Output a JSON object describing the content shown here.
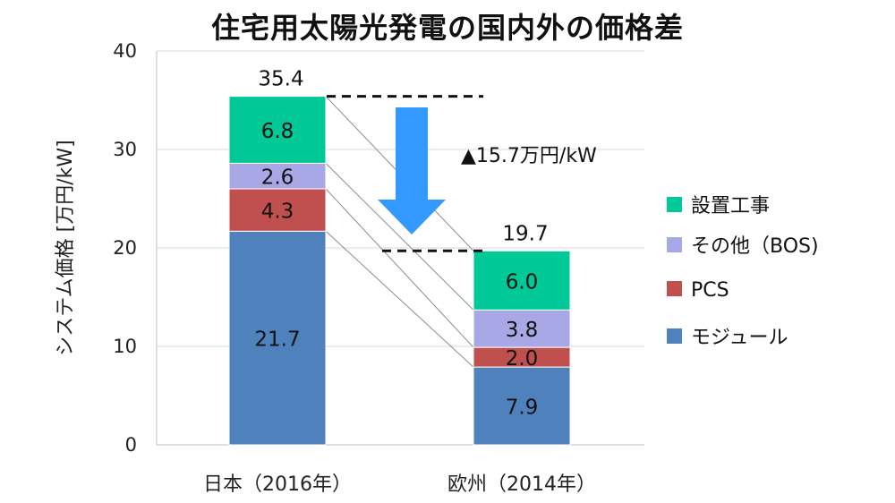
{
  "chart_data": {
    "type": "bar",
    "stacked": true,
    "title": "住宅用太陽光発電の国内外の価格差",
    "ylabel": "システム価格 [万円/kW]",
    "xlabel": "",
    "ylim": [
      0,
      40
    ],
    "yticks": [
      "0",
      "10",
      "20",
      "30",
      "40"
    ],
    "grid": true,
    "legend_position": "right",
    "categories": [
      "日本（2016年）",
      "欧州（2014年）"
    ],
    "totals": [
      35.4,
      19.7
    ],
    "total_labels": [
      "35.4",
      "19.7"
    ],
    "series": [
      {
        "name": "モジュール",
        "color": "#4f81bd",
        "values": [
          21.7,
          7.9
        ],
        "labels": [
          "21.7",
          "7.9"
        ]
      },
      {
        "name": "PCS",
        "color": "#c0504d",
        "values": [
          4.3,
          2.0
        ],
        "labels": [
          "4.3",
          "2.0"
        ]
      },
      {
        "name": "その他（BOS)",
        "color": "#a9a8e6",
        "values": [
          2.6,
          3.8
        ],
        "labels": [
          "2.6",
          "3.8"
        ]
      },
      {
        "name": "設置工事",
        "color": "#00c896",
        "values": [
          6.8,
          6.0
        ],
        "labels": [
          "6.8",
          "6.0"
        ]
      }
    ],
    "legend_order": [
      "設置工事",
      "その他（BOS)",
      "PCS",
      "モジュール"
    ],
    "annotation": "▲15.7万円/kW",
    "arrow_color": "#3399ff"
  }
}
